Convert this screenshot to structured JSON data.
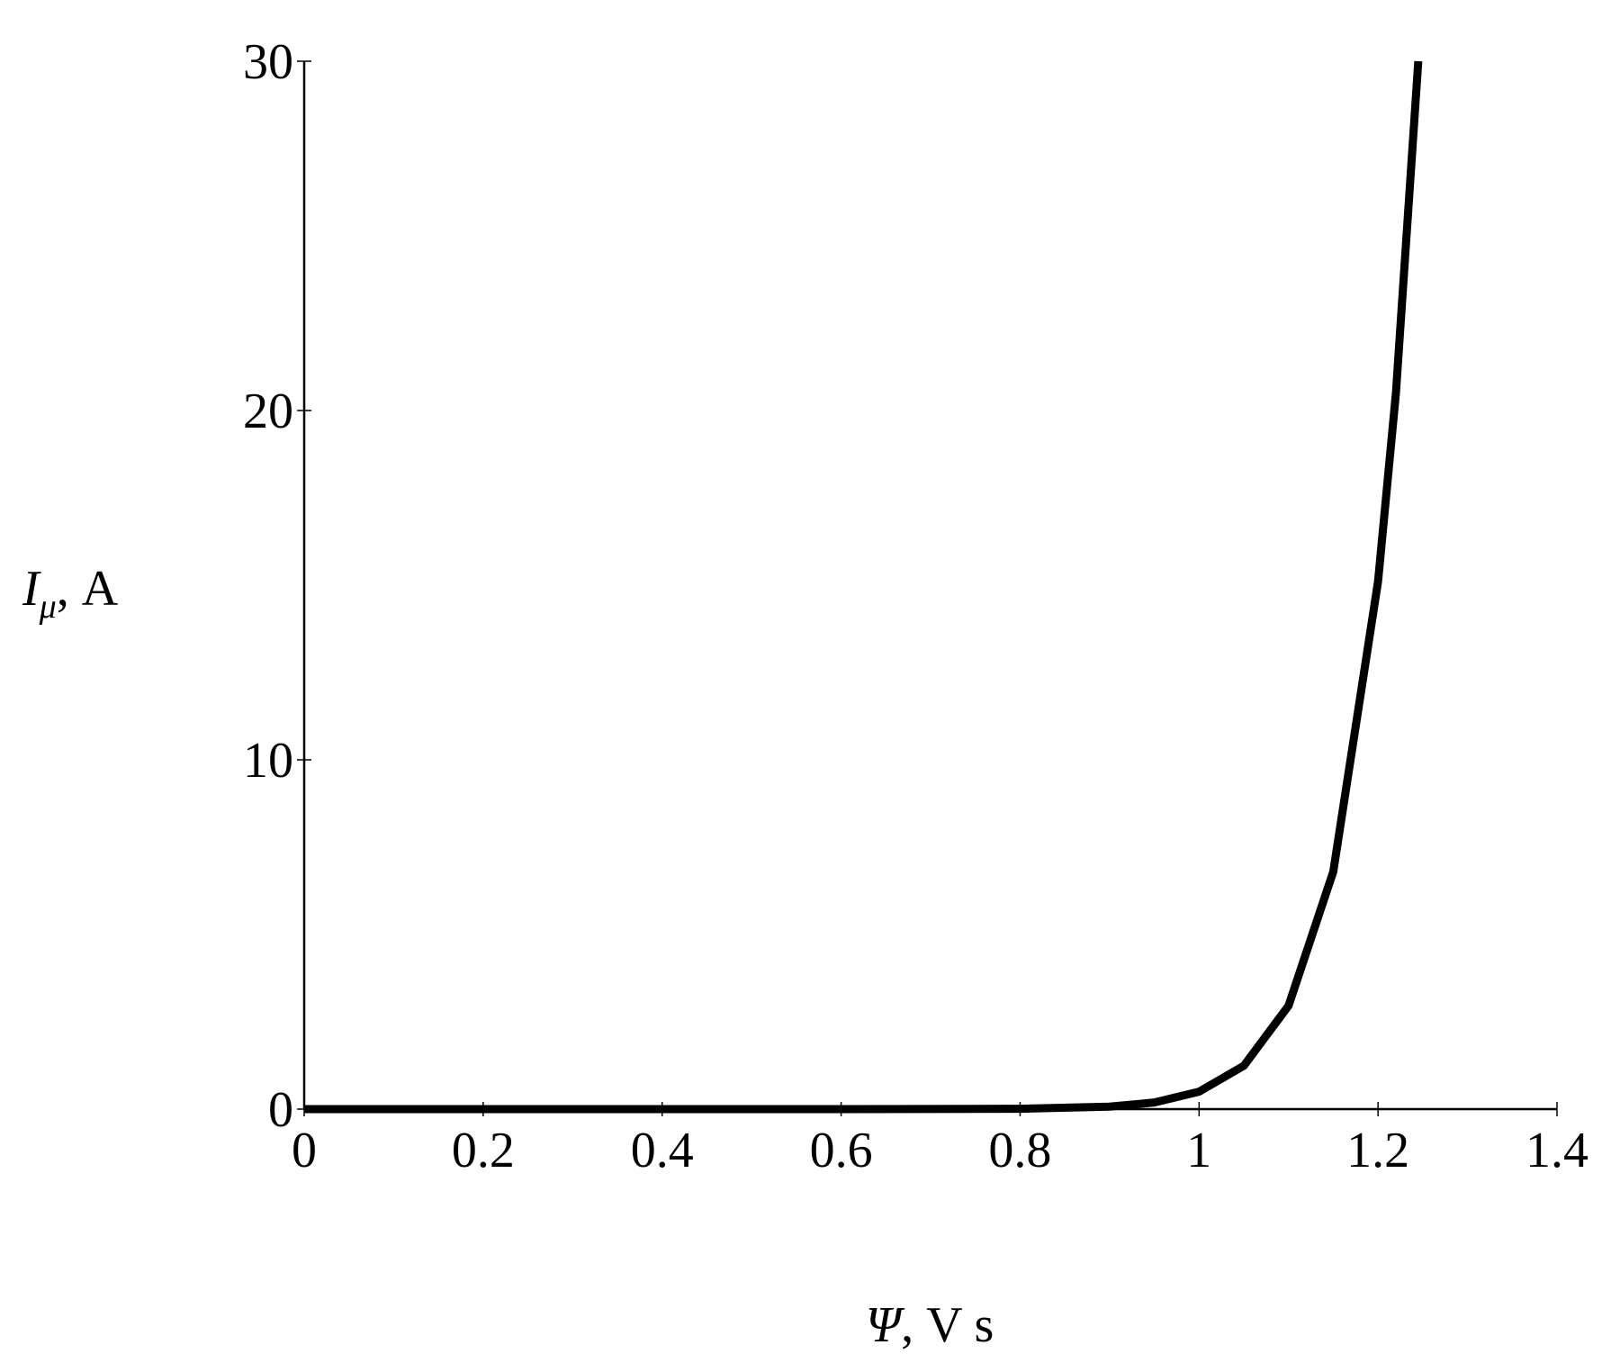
{
  "chart_data": {
    "type": "line",
    "x_label": {
      "symbol": "Ψ",
      "unit": ", V s"
    },
    "y_label": {
      "symbol": "I",
      "subscript": "μ",
      "unit": ", A"
    },
    "x": [
      0,
      0.2,
      0.4,
      0.6,
      0.8,
      0.9,
      0.95,
      1.0,
      1.05,
      1.1,
      1.15,
      1.2,
      1.22,
      1.245
    ],
    "series": [
      {
        "color": "#000000",
        "values": [
          0,
          0,
          0,
          0,
          0.01,
          0.07,
          0.19,
          0.5,
          1.24,
          2.96,
          6.8,
          15.1,
          20.5,
          30
        ]
      }
    ],
    "xlim": [
      0,
      1.4
    ],
    "xticks": [
      0,
      0.2,
      0.4,
      0.6,
      0.8,
      1,
      1.2,
      1.4
    ],
    "ylim": [
      0,
      30
    ],
    "yticks": [
      0,
      10,
      20,
      30
    ]
  }
}
